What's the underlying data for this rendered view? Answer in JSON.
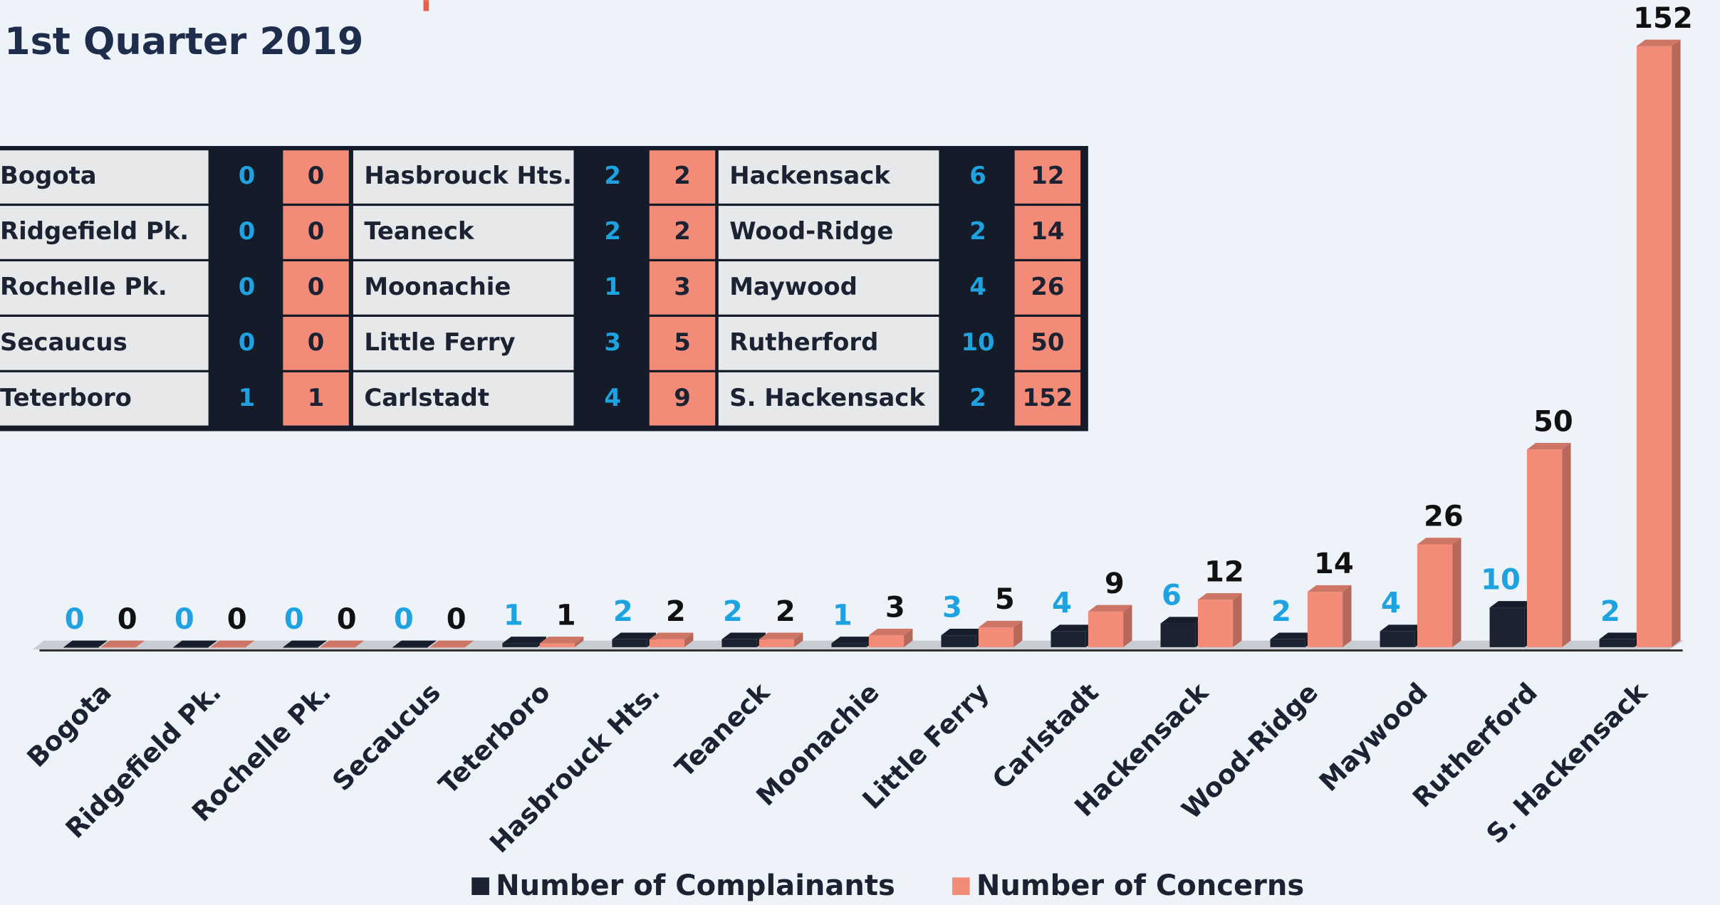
{
  "chart_data": {
    "type": "bar",
    "title": "1st Quarter 2019",
    "categories": [
      "Bogota",
      "Ridgefield Pk.",
      "Rochelle Pk.",
      "Secaucus",
      "Teterboro",
      "Hasbrouck Hts.",
      "Teaneck",
      "Moonachie",
      "Little Ferry",
      "Carlstadt",
      "Hackensack",
      "Wood-Ridge",
      "Maywood",
      "Rutherford",
      "S. Hackensack"
    ],
    "series": [
      {
        "name": "Number of Complainants",
        "color": "#1b2333",
        "label_color": "#1fa3e0",
        "values": [
          0,
          0,
          0,
          0,
          1,
          2,
          2,
          1,
          3,
          4,
          6,
          2,
          4,
          10,
          2
        ]
      },
      {
        "name": "Number of Concerns",
        "color": "#f28b78",
        "label_color": "#111111",
        "values": [
          0,
          0,
          0,
          0,
          1,
          2,
          2,
          3,
          5,
          9,
          12,
          14,
          26,
          50,
          152
        ]
      }
    ]
  },
  "table": {
    "groups": [
      {
        "rows": [
          [
            "Bogota",
            "0",
            "0"
          ],
          [
            "Ridgefield Pk.",
            "0",
            "0"
          ],
          [
            "Rochelle Pk.",
            "0",
            "0"
          ],
          [
            "Secaucus",
            "0",
            "0"
          ],
          [
            "Teterboro",
            "1",
            "1"
          ]
        ]
      },
      {
        "rows": [
          [
            "Hasbrouck Hts.",
            "2",
            "2"
          ],
          [
            "Teaneck",
            "2",
            "2"
          ],
          [
            "Moonachie",
            "1",
            "3"
          ],
          [
            "Little Ferry",
            "3",
            "5"
          ],
          [
            "Carlstadt",
            "4",
            "9"
          ]
        ]
      },
      {
        "rows": [
          [
            "Hackensack",
            "6",
            "12"
          ],
          [
            "Wood-Ridge",
            "2",
            "14"
          ],
          [
            "Maywood",
            "4",
            "26"
          ],
          [
            "Rutherford",
            "10",
            "50"
          ],
          [
            "S. Hackensack",
            "2",
            "152"
          ]
        ]
      }
    ]
  }
}
